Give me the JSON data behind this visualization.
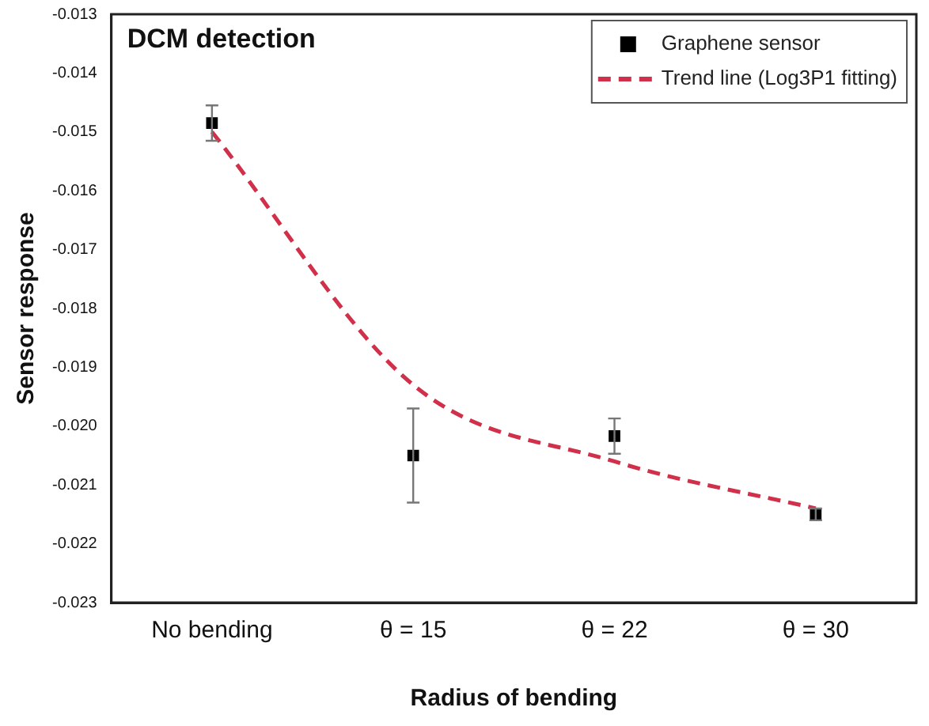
{
  "chart_data": {
    "type": "scatter",
    "title": "DCM detection",
    "xlabel": "Radius of bending",
    "ylabel": "Sensor response",
    "categories": [
      "No bending",
      "θ = 15",
      "θ = 22",
      "θ = 30"
    ],
    "series": [
      {
        "name": "Graphene sensor",
        "marker": "square",
        "color": "#000000",
        "values": [
          -0.01485,
          -0.0205,
          -0.02017,
          -0.0215
        ],
        "errors": [
          0.0003,
          0.0008,
          0.0003,
          0.0001
        ]
      },
      {
        "name": "Trend line (Log3P1 fitting)",
        "type": "line",
        "marker": "none",
        "line_style": "dashed",
        "color": "#d0304a",
        "values": [
          -0.015,
          -0.0193,
          -0.0206,
          -0.0214
        ]
      }
    ],
    "ylim": [
      -0.023,
      -0.013
    ],
    "yticks": [
      {
        "value": -0.023,
        "label": "-0.023"
      },
      {
        "value": -0.022,
        "label": "-0.022"
      },
      {
        "value": -0.021,
        "label": "-0.021"
      },
      {
        "value": -0.02,
        "label": "-0.020"
      },
      {
        "value": -0.019,
        "label": "-0.019"
      },
      {
        "value": -0.018,
        "label": "-0.018"
      },
      {
        "value": -0.017,
        "label": "-0.017"
      },
      {
        "value": -0.016,
        "label": "-0.016"
      },
      {
        "value": -0.015,
        "label": "-0.015"
      },
      {
        "value": -0.014,
        "label": "-0.014"
      },
      {
        "value": -0.013,
        "label": "-0.013"
      }
    ],
    "grid": false,
    "legend": "top right"
  }
}
